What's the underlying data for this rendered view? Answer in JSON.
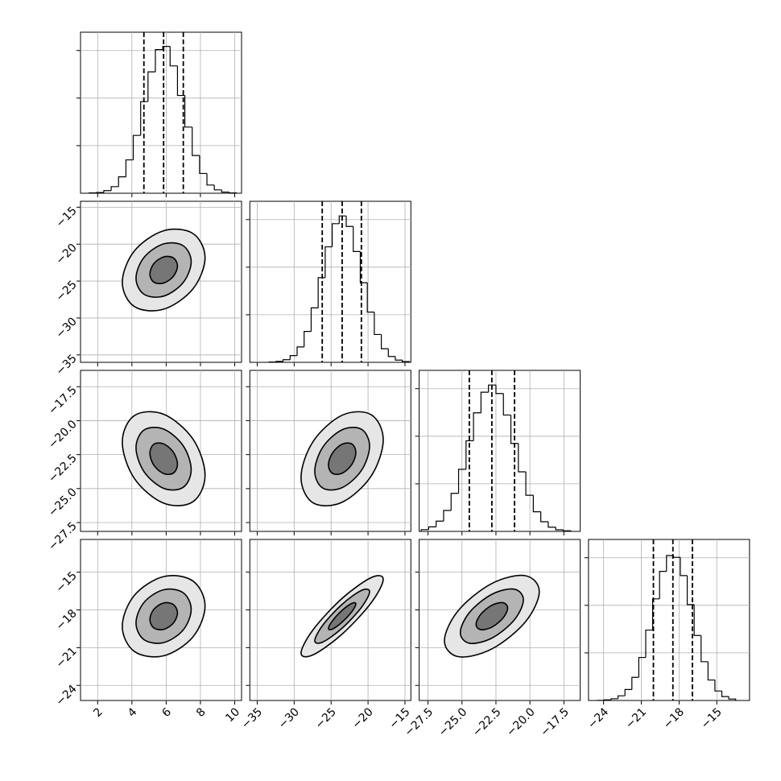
{
  "chart_data": {
    "type": "corner",
    "grid": true,
    "line_color": "#000000",
    "grid_color": "#b0b0b0",
    "contour_fills": [
      "#e6e6e6",
      "#b4b4b4",
      "#767676"
    ],
    "params": [
      {
        "xlim": [
          1.0,
          10.4
        ],
        "xticks": [
          2,
          4,
          6,
          8,
          10
        ],
        "bins": [
          1.5,
          1.93,
          2.36,
          2.79,
          3.22,
          3.65,
          4.08,
          4.51,
          4.94,
          5.37,
          5.8,
          6.23,
          6.66,
          7.09,
          7.52,
          7.95,
          8.38,
          8.81,
          9.24,
          9.67,
          10.1
        ],
        "counts": [
          2,
          5,
          18,
          45,
          112,
          228,
          395,
          626,
          829,
          981,
          1003,
          870,
          668,
          452,
          258,
          135,
          56,
          23,
          8,
          2
        ],
        "quantiles": [
          4.7,
          5.85,
          7.0
        ],
        "hist_ylim": [
          0,
          1100
        ],
        "hist_yticks": [
          325,
          650,
          975
        ]
      },
      {
        "xlim": [
          -36.0,
          -14.2
        ],
        "xticks": [
          {
            "value": -35,
            "label": "−35"
          },
          {
            "value": -30,
            "label": "−30"
          },
          {
            "value": -25,
            "label": "−25"
          },
          {
            "value": -20,
            "label": "−20"
          },
          {
            "value": -15,
            "label": "−15"
          }
        ],
        "bins": [
          -33.4,
          -32.45,
          -31.5,
          -30.55,
          -29.6,
          -28.65,
          -27.7,
          -26.75,
          -25.8,
          -24.85,
          -23.9,
          -22.95,
          -22.0,
          -21.05,
          -20.1,
          -19.15,
          -18.2,
          -17.25,
          -16.3,
          -15.35,
          -14.4
        ],
        "counts": [
          2,
          6,
          18,
          46,
          105,
          211,
          372,
          578,
          789,
          947,
          1000,
          928,
          757,
          544,
          343,
          190,
          93,
          40,
          15,
          5
        ],
        "quantiles": [
          -26.2,
          -23.5,
          -20.9
        ],
        "hist_ylim": [
          0,
          1100
        ],
        "hist_yticks": [
          325,
          650,
          975
        ]
      },
      {
        "xlim": [
          -28.15,
          -16.3
        ],
        "xticks": [
          {
            "value": -27.5,
            "label": "−27.5"
          },
          {
            "value": -25.0,
            "label": "−25.0"
          },
          {
            "value": -22.5,
            "label": "−22.5"
          },
          {
            "value": -20.0,
            "label": "−20.0"
          },
          {
            "value": -17.5,
            "label": "−17.5"
          }
        ],
        "bins": [
          -28.0,
          -27.45,
          -26.9,
          -26.35,
          -25.8,
          -25.25,
          -24.7,
          -24.15,
          -23.6,
          -23.05,
          -22.5,
          -21.95,
          -21.4,
          -20.85,
          -20.3,
          -19.75,
          -19.2,
          -18.65,
          -18.1,
          -17.55,
          -17.0
        ],
        "counts": [
          12,
          31,
          70,
          143,
          260,
          424,
          619,
          810,
          951,
          1000,
          942,
          795,
          601,
          407,
          247,
          134,
          66,
          29,
          11,
          4
        ],
        "quantiles": [
          -24.46,
          -22.8,
          -21.13
        ],
        "hist_ylim": [
          0,
          1100
        ],
        "hist_yticks": [
          325,
          650,
          975
        ]
      },
      {
        "xlim": [
          -25.2,
          -12.4
        ],
        "xticks": [
          {
            "value": -24,
            "label": "−24"
          },
          {
            "value": -21,
            "label": "−21"
          },
          {
            "value": -18,
            "label": "−18"
          },
          {
            "value": -15,
            "label": "−15"
          }
        ],
        "bins": [
          -24.5,
          -23.95,
          -23.4,
          -22.85,
          -22.3,
          -21.75,
          -21.2,
          -20.65,
          -20.1,
          -19.55,
          -19.0,
          -18.45,
          -17.9,
          -17.35,
          -16.8,
          -16.25,
          -15.7,
          -15.15,
          -14.6,
          -14.05,
          -13.5
        ],
        "counts": [
          1,
          4,
          12,
          32,
          75,
          158,
          294,
          481,
          694,
          882,
          990,
          978,
          853,
          655,
          444,
          265,
          140,
          65,
          27,
          10
        ],
        "quantiles": [
          -20.04,
          -18.49,
          -16.94
        ],
        "hist_ylim": [
          0,
          1100
        ],
        "hist_yticks": [
          325,
          650,
          975
        ]
      }
    ],
    "pairs": [
      {
        "contours": [
          {
            "x": [
              6.66,
              6.42,
              5.85,
              5.28,
              5.05,
              5.28,
              5.85,
              6.42
            ],
            "y": [
              -22.94,
              -21.86,
              -21.73,
              -22.64,
              -24.06,
              -25.15,
              -25.27,
              -24.36
            ]
          },
          {
            "x": [
              7.46,
              6.99,
              5.85,
              4.71,
              4.24,
              4.71,
              5.85,
              6.99
            ],
            "y": [
              -22.39,
              -20.21,
              -19.96,
              -21.79,
              -24.61,
              -26.79,
              -27.04,
              -25.21
            ]
          },
          {
            "x": [
              8.27,
              7.56,
              5.85,
              4.14,
              3.44,
              4.14,
              5.85,
              7.56
            ],
            "y": [
              -21.83,
              -18.56,
              -18.19,
              -20.93,
              -25.17,
              -28.44,
              -28.81,
              -26.07
            ]
          }
        ]
      },
      {
        "contours": [
          {
            "x": [
              6.66,
              6.42,
              5.85,
              5.28,
              5.05,
              5.28,
              5.85,
              6.42
            ],
            "y": [
              -23.21,
              -22.32,
              -21.71,
              -21.74,
              -22.39,
              -23.28,
              -23.89,
              -23.86
            ]
          },
          {
            "x": [
              7.46,
              6.99,
              5.85,
              4.71,
              4.24,
              4.71,
              5.85,
              6.99
            ],
            "y": [
              -23.61,
              -21.84,
              -20.62,
              -20.69,
              -21.99,
              -23.76,
              -24.98,
              -24.91
            ]
          },
          {
            "x": [
              8.27,
              7.56,
              5.85,
              4.14,
              3.44,
              4.14,
              5.85,
              7.56
            ],
            "y": [
              -24.02,
              -21.35,
              -19.53,
              -19.63,
              -21.58,
              -24.25,
              -26.07,
              -25.97
            ]
          }
        ]
      },
      {
        "contours": [
          {
            "x": [
              -21.65,
              -22.19,
              -23.5,
              -24.81,
              -25.36,
              -24.81,
              -23.5,
              -22.19
            ],
            "y": [
              -22.34,
              -21.72,
              -21.73,
              -22.38,
              -23.26,
              -23.88,
              -23.87,
              -23.22
            ]
          },
          {
            "x": [
              -19.79,
              -20.88,
              -23.5,
              -26.12,
              -27.21,
              -26.12,
              -23.5,
              -20.88
            ],
            "y": [
              -21.87,
              -20.64,
              -20.67,
              -21.95,
              -23.73,
              -24.96,
              -24.93,
              -23.65
            ]
          },
          {
            "x": [
              -17.94,
              -19.57,
              -23.5,
              -27.43,
              -29.07,
              -27.43,
              -23.5,
              -19.57
            ],
            "y": [
              -21.41,
              -19.56,
              -19.6,
              -21.53,
              -24.19,
              -26.05,
              -26.0,
              -24.07
            ]
          }
        ]
      },
      {
        "contours": [
          {
            "x": [
              6.66,
              6.42,
              5.85,
              5.28,
              5.05,
              5.28,
              5.85,
              6.42
            ],
            "y": [
              -18.23,
              -17.57,
              -17.45,
              -17.95,
              -18.77,
              -19.43,
              -19.55,
              -19.05
            ]
          },
          {
            "x": [
              7.46,
              6.99,
              5.85,
              4.71,
              4.24,
              4.71,
              5.85,
              6.99
            ],
            "y": [
              -17.96,
              -16.63,
              -16.4,
              -17.4,
              -19.04,
              -20.37,
              -20.6,
              -19.6
            ]
          },
          {
            "x": [
              8.27,
              7.56,
              5.85,
              4.14,
              3.44,
              4.14,
              5.85,
              7.56
            ],
            "y": [
              -17.69,
              -15.7,
              -15.35,
              -16.85,
              -19.31,
              -21.3,
              -21.65,
              -20.15
            ]
          }
        ]
      },
      {
        "contours": [
          {
            "x": [
              -21.65,
              -22.19,
              -23.5,
              -24.81,
              -25.36,
              -24.81,
              -23.5,
              -22.19
            ],
            "y": [
              -17.52,
              -17.48,
              -18.03,
              -18.86,
              -19.48,
              -19.52,
              -18.97,
              -18.14
            ]
          },
          {
            "x": [
              -19.79,
              -20.88,
              -23.5,
              -26.12,
              -27.21,
              -26.12,
              -23.5,
              -20.88
            ],
            "y": [
              -16.55,
              -16.45,
              -17.55,
              -19.21,
              -20.45,
              -20.55,
              -19.45,
              -17.79
            ]
          },
          {
            "x": [
              -17.94,
              -19.57,
              -23.5,
              -27.43,
              -29.07,
              -27.43,
              -23.5,
              -19.57
            ],
            "y": [
              -15.57,
              -15.43,
              -17.08,
              -19.57,
              -21.43,
              -21.57,
              -19.92,
              -17.43
            ]
          }
        ]
      },
      {
        "contours": [
          {
            "x": [
              -21.64,
              -21.98,
              -22.8,
              -23.62,
              -23.96,
              -23.62,
              -22.8,
              -21.98
            ],
            "y": [
              -17.85,
              -17.43,
              -17.63,
              -18.35,
              -19.15,
              -19.57,
              -19.37,
              -18.65
            ]
          },
          {
            "x": [
              -20.48,
              -21.16,
              -22.8,
              -24.44,
              -25.12,
              -24.44,
              -22.8,
              -21.16
            ],
            "y": [
              -17.2,
              -16.35,
              -16.76,
              -18.19,
              -19.8,
              -20.65,
              -20.24,
              -18.81
            ]
          },
          {
            "x": [
              -19.31,
              -20.34,
              -22.8,
              -25.26,
              -26.29,
              -25.26,
              -22.8,
              -20.34
            ],
            "y": [
              -16.55,
              -15.28,
              -15.9,
              -18.04,
              -20.45,
              -21.72,
              -21.1,
              -18.96
            ]
          }
        ]
      }
    ]
  }
}
